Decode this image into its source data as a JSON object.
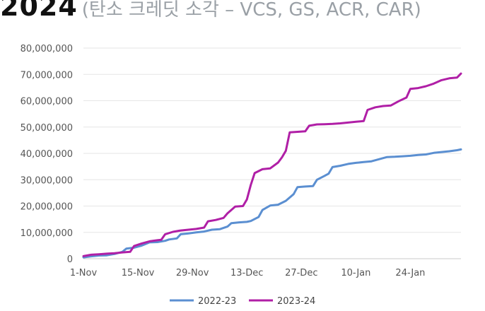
{
  "header": {
    "title": "2024",
    "subtitle": "(탄소 크레딧 소각 – VCS, GS, ACR, CAR)"
  },
  "chart_data": {
    "type": "line",
    "title": "2024",
    "subtitle": "(탄소 크레딧 소각 – VCS, GS, ACR, CAR)",
    "xlabel": "",
    "ylabel": "",
    "x_start": "1-Nov",
    "x_end_day_offset": 97,
    "x_tick_labels": [
      "1-Nov",
      "15-Nov",
      "29-Nov",
      "13-Dec",
      "27-Dec",
      "10-Jan",
      "24-Jan"
    ],
    "x_tick_day_offsets": [
      0,
      14,
      28,
      42,
      56,
      70,
      84
    ],
    "y_tick_labels": [
      "0",
      "10,000,000",
      "20,000,000",
      "30,000,000",
      "40,000,000",
      "50,000,000",
      "60,000,000",
      "70,000,000",
      "80,000,000"
    ],
    "ylim": [
      0,
      80000000
    ],
    "grid": true,
    "legend_position": "bottom",
    "series": [
      {
        "name": "2022-23",
        "color": "#5b8fd1",
        "points": [
          [
            0,
            500000
          ],
          [
            2,
            900000
          ],
          [
            4,
            1200000
          ],
          [
            6,
            1300000
          ],
          [
            8,
            1800000
          ],
          [
            10,
            2600000
          ],
          [
            11,
            3800000
          ],
          [
            13,
            4200000
          ],
          [
            15,
            5000000
          ],
          [
            17,
            6200000
          ],
          [
            19,
            6300000
          ],
          [
            21,
            6800000
          ],
          [
            22,
            7300000
          ],
          [
            24,
            7700000
          ],
          [
            25,
            9300000
          ],
          [
            27,
            9600000
          ],
          [
            29,
            10000000
          ],
          [
            31,
            10300000
          ],
          [
            33,
            11000000
          ],
          [
            35,
            11200000
          ],
          [
            37,
            12200000
          ],
          [
            38,
            13500000
          ],
          [
            40,
            13800000
          ],
          [
            42,
            14000000
          ],
          [
            43,
            14300000
          ],
          [
            45,
            15800000
          ],
          [
            46,
            18500000
          ],
          [
            48,
            20200000
          ],
          [
            50,
            20500000
          ],
          [
            52,
            22000000
          ],
          [
            54,
            24500000
          ],
          [
            55,
            27200000
          ],
          [
            57,
            27400000
          ],
          [
            59,
            27600000
          ],
          [
            60,
            30000000
          ],
          [
            62,
            31500000
          ],
          [
            63,
            32300000
          ],
          [
            64,
            34800000
          ],
          [
            66,
            35300000
          ],
          [
            68,
            36000000
          ],
          [
            70,
            36400000
          ],
          [
            72,
            36700000
          ],
          [
            74,
            37000000
          ],
          [
            76,
            37800000
          ],
          [
            78,
            38600000
          ],
          [
            80,
            38700000
          ],
          [
            82,
            38900000
          ],
          [
            84,
            39100000
          ],
          [
            86,
            39400000
          ],
          [
            88,
            39600000
          ],
          [
            90,
            40200000
          ],
          [
            92,
            40500000
          ],
          [
            94,
            40800000
          ],
          [
            96,
            41200000
          ],
          [
            97,
            41500000
          ]
        ]
      },
      {
        "name": "2023-24",
        "color": "#b01fa6",
        "points": [
          [
            0,
            1000000
          ],
          [
            2,
            1500000
          ],
          [
            4,
            1700000
          ],
          [
            6,
            1900000
          ],
          [
            8,
            2100000
          ],
          [
            10,
            2400000
          ],
          [
            12,
            2600000
          ],
          [
            13,
            4800000
          ],
          [
            15,
            5800000
          ],
          [
            17,
            6600000
          ],
          [
            19,
            7000000
          ],
          [
            20,
            7200000
          ],
          [
            21,
            9300000
          ],
          [
            23,
            10200000
          ],
          [
            25,
            10700000
          ],
          [
            27,
            11000000
          ],
          [
            29,
            11300000
          ],
          [
            31,
            11800000
          ],
          [
            32,
            14200000
          ],
          [
            34,
            14700000
          ],
          [
            36,
            15500000
          ],
          [
            37,
            17200000
          ],
          [
            39,
            19800000
          ],
          [
            41,
            20000000
          ],
          [
            42,
            22500000
          ],
          [
            43,
            28000000
          ],
          [
            44,
            32500000
          ],
          [
            46,
            34000000
          ],
          [
            48,
            34300000
          ],
          [
            50,
            36500000
          ],
          [
            51,
            38500000
          ],
          [
            52,
            41000000
          ],
          [
            53,
            48000000
          ],
          [
            55,
            48200000
          ],
          [
            57,
            48400000
          ],
          [
            58,
            50500000
          ],
          [
            60,
            51000000
          ],
          [
            62,
            51100000
          ],
          [
            64,
            51200000
          ],
          [
            66,
            51400000
          ],
          [
            68,
            51700000
          ],
          [
            70,
            52000000
          ],
          [
            72,
            52300000
          ],
          [
            73,
            56500000
          ],
          [
            75,
            57500000
          ],
          [
            77,
            58000000
          ],
          [
            79,
            58200000
          ],
          [
            81,
            59800000
          ],
          [
            83,
            61200000
          ],
          [
            84,
            64500000
          ],
          [
            86,
            64800000
          ],
          [
            88,
            65500000
          ],
          [
            90,
            66500000
          ],
          [
            92,
            67800000
          ],
          [
            94,
            68500000
          ],
          [
            96,
            68800000
          ],
          [
            97,
            70300000
          ]
        ]
      }
    ]
  }
}
